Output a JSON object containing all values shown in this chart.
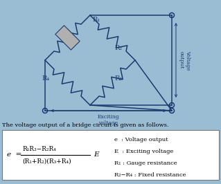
{
  "bg_color": "#9bbdd4",
  "text_color": "#1a3a6e",
  "box_bg": "#ffffff",
  "title_text": "The voltage output of a bridge circuit is given as follows.",
  "legend_lines": [
    "e  : Voltage output",
    "E  : Exciting voltage",
    "R₁ : Gauge resistance",
    "R₂−R₄ : Fixed resistance"
  ]
}
